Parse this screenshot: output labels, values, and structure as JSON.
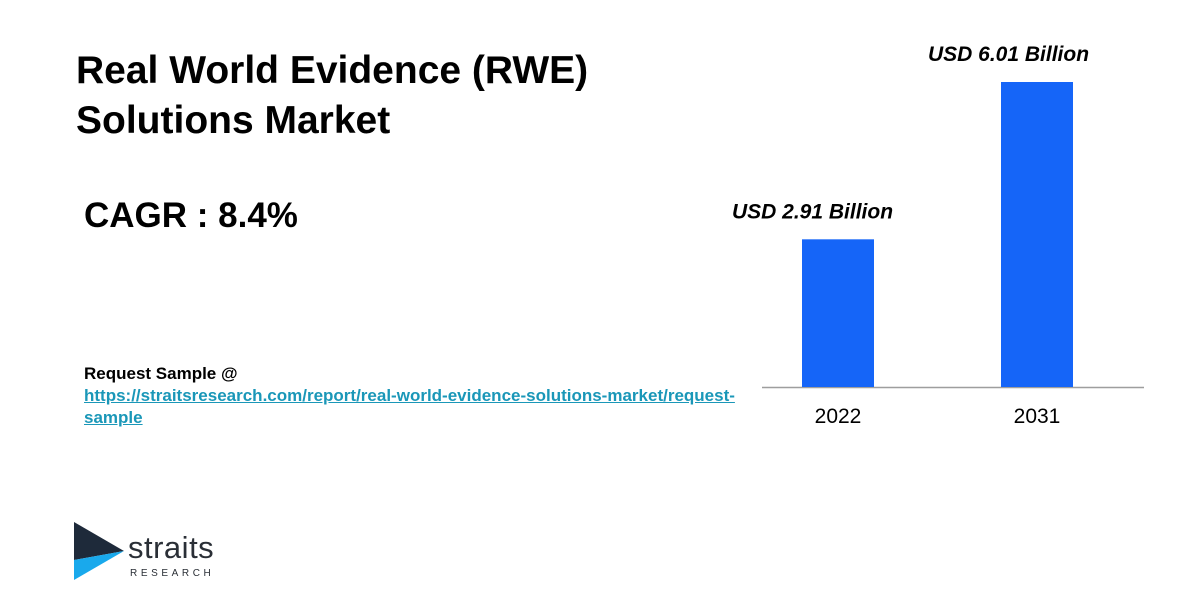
{
  "title_line1": "Real World Evidence (RWE)",
  "title_line2": "Solutions Market",
  "cagr": "CAGR : 8.4%",
  "request": {
    "label": "Request Sample @",
    "url": "https://straitsresearch.com/report/real-world-evidence-solutions-market/request-sample"
  },
  "logo": {
    "word": "straits",
    "sub": "RESEARCH"
  },
  "colors": {
    "bar": "#1565f8",
    "link": "#1a97b8",
    "logo_dark": "#1e2a3a",
    "logo_light": "#19a9ec"
  },
  "chart_data": {
    "type": "bar",
    "categories": [
      "2022",
      "2031"
    ],
    "values": [
      2.91,
      6.01
    ],
    "data_labels": [
      "USD 2.91 Billion",
      "USD 6.01 Billion"
    ],
    "unit": "USD Billion",
    "ylim": [
      0,
      6.01
    ],
    "grid": false,
    "legend": "none"
  }
}
